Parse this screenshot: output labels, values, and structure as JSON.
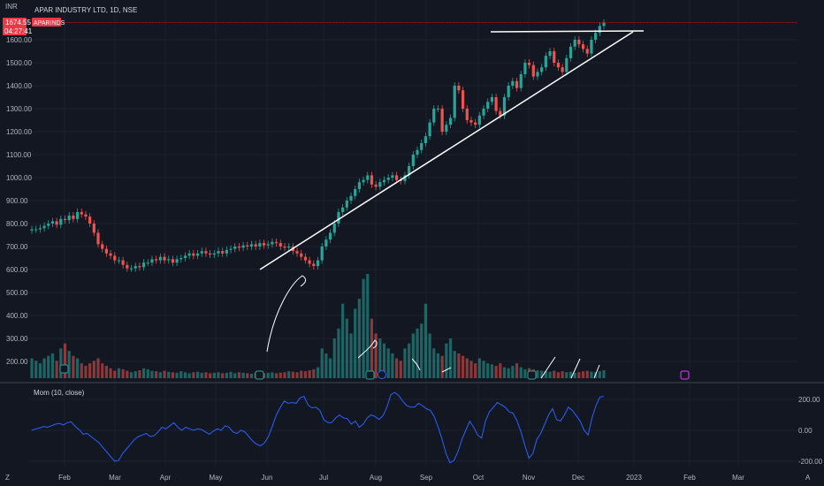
{
  "header": {
    "currency": "INR",
    "symbol_title": "APAR INDUSTRY LTD, 1D, NSE",
    "last_price": "1674.55",
    "countdown": "04:27:41",
    "ticker": "APARINDS"
  },
  "momentum_panel": {
    "title": "Mom (10, close)",
    "ticks": [
      "200.00",
      "0.00",
      "-200.00"
    ],
    "values": [
      0,
      10,
      15,
      25,
      20,
      30,
      40,
      45,
      35,
      50,
      55,
      25,
      5,
      -25,
      -20,
      -40,
      -60,
      -80,
      -110,
      -140,
      -170,
      -200,
      -195,
      -150,
      -120,
      -90,
      -60,
      -40,
      -30,
      -20,
      -40,
      -35,
      -10,
      20,
      10,
      30,
      50,
      20,
      0,
      20,
      10,
      0,
      10,
      5,
      -10,
      -25,
      -5,
      10,
      0,
      30,
      20,
      -10,
      -20,
      0,
      -10,
      -40,
      -70,
      -90,
      -100,
      -80,
      -40,
      30,
      100,
      150,
      190,
      175,
      180,
      175,
      210,
      220,
      165,
      145,
      150,
      130,
      70,
      50,
      50,
      80,
      100,
      80,
      75,
      40,
      60,
      20,
      40,
      80,
      100,
      90,
      70,
      95,
      150,
      230,
      245,
      225,
      190,
      160,
      150,
      150,
      175,
      160,
      140,
      130,
      90,
      20,
      -60,
      -150,
      -210,
      -195,
      -140,
      -60,
      0,
      60,
      20,
      -30,
      -50,
      60,
      120,
      150,
      180,
      165,
      150,
      120,
      110,
      60,
      -10,
      -100,
      -180,
      -150,
      -60,
      -20,
      40,
      100,
      140,
      70,
      60,
      100,
      150,
      130,
      95,
      60,
      0,
      -30,
      80,
      160,
      215,
      220
    ]
  },
  "chart_data": {
    "type": "candlestick",
    "title": "APAR INDUSTRY LTD, 1D, NSE",
    "ylabel": "INR",
    "y_ticks": [
      "1600.00",
      "1500.00",
      "1400.00",
      "1300.00",
      "1200.00",
      "1100.00",
      "1000.00",
      "900.00",
      "800.00",
      "700.00",
      "600.00",
      "500.00",
      "400.00",
      "300.00",
      "200.00"
    ],
    "x_ticks": [
      "Feb",
      "Mar",
      "Apr",
      "May",
      "Jun",
      "Jul",
      "Aug",
      "Sep",
      "Oct",
      "Nov",
      "Dec",
      "2023",
      "Feb",
      "Mar"
    ],
    "last_price": 1674.55,
    "colors": {
      "up": "#26a69a",
      "down": "#ef5350",
      "line": "#ffffff",
      "momentum": "#2962ff",
      "price_line": "#f23645"
    },
    "closes": [
      775,
      775,
      780,
      790,
      800,
      810,
      795,
      820,
      815,
      835,
      820,
      850,
      840,
      830,
      800,
      760,
      710,
      690,
      670,
      660,
      640,
      640,
      620,
      605,
      605,
      615,
      610,
      630,
      630,
      645,
      640,
      655,
      640,
      645,
      630,
      645,
      650,
      660,
      670,
      660,
      670,
      680,
      670,
      665,
      670,
      680,
      670,
      685,
      690,
      700,
      695,
      705,
      700,
      710,
      700,
      715,
      705,
      710,
      720,
      715,
      700,
      695,
      700,
      680,
      670,
      655,
      640,
      625,
      615,
      640,
      700,
      730,
      760,
      800,
      850,
      870,
      900,
      920,
      950,
      980,
      990,
      1010,
      970,
      960,
      980,
      990,
      1000,
      1010,
      990,
      985,
      1010,
      1050,
      1100,
      1120,
      1150,
      1180,
      1240,
      1300,
      1300,
      1200,
      1230,
      1260,
      1400,
      1380,
      1300,
      1250,
      1240,
      1230,
      1270,
      1300,
      1330,
      1350,
      1290,
      1270,
      1350,
      1400,
      1420,
      1390,
      1450,
      1500,
      1490,
      1440,
      1460,
      1480,
      1530,
      1550,
      1500,
      1480,
      1460,
      1520,
      1570,
      1600,
      1580,
      1560,
      1540,
      1600,
      1630,
      1660,
      1674.55
    ],
    "volume": [
      40,
      35,
      30,
      40,
      45,
      50,
      35,
      60,
      70,
      55,
      45,
      40,
      30,
      25,
      30,
      35,
      40,
      30,
      25,
      20,
      15,
      20,
      18,
      15,
      12,
      14,
      16,
      20,
      18,
      15,
      14,
      12,
      15,
      13,
      12,
      11,
      14,
      12,
      10,
      12,
      13,
      11,
      12,
      10,
      11,
      12,
      10,
      11,
      13,
      10,
      12,
      11,
      10,
      9,
      11,
      12,
      10,
      11,
      12,
      10,
      11,
      12,
      14,
      13,
      12,
      15,
      14,
      16,
      18,
      22,
      60,
      50,
      40,
      80,
      100,
      150,
      120,
      90,
      140,
      160,
      200,
      210,
      120,
      90,
      80,
      70,
      60,
      50,
      40,
      35,
      60,
      70,
      90,
      100,
      110,
      150,
      90,
      60,
      50,
      45,
      70,
      80,
      55,
      50,
      45,
      40,
      35,
      30,
      40,
      35,
      30,
      28,
      25,
      30,
      22,
      20,
      25,
      30,
      22,
      18,
      20,
      18,
      16,
      15,
      14,
      13,
      15,
      12,
      14,
      12,
      13,
      11,
      12,
      14,
      15,
      13,
      12,
      14,
      16,
      18,
      20,
      22
    ],
    "annotations": [
      "Ascending triangle: horizontal resistance line and rising trend line"
    ]
  },
  "toolbar": {
    "log_label": "A",
    "zoom_label": "Z"
  }
}
